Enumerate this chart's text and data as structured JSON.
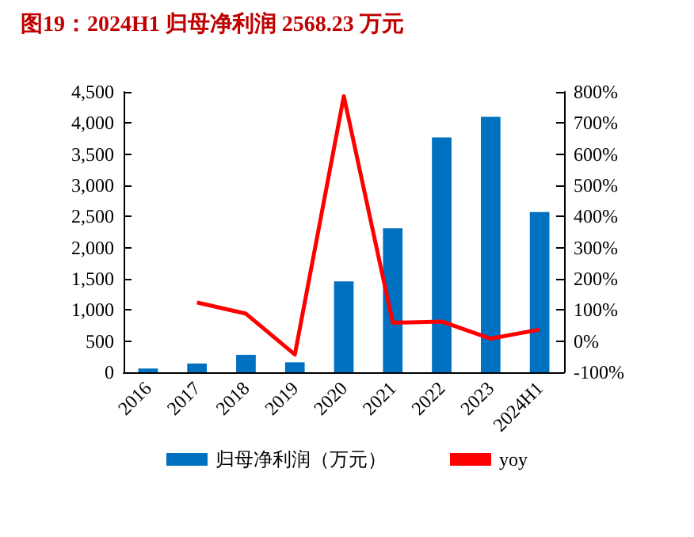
{
  "chart_data": {
    "type": "bar",
    "title": "图19：2024H1 归母净利润 2568.23 万元",
    "categories": [
      "2016",
      "2017",
      "2018",
      "2019",
      "2020",
      "2021",
      "2022",
      "2023",
      "2024H1"
    ],
    "series": [
      {
        "name": "归母净利润（万元）",
        "color": "#0070c0",
        "values": [
          60,
          140,
          280,
          160,
          1460,
          2310,
          3770,
          4100,
          2570
        ]
      },
      {
        "name": "yoy",
        "type": "line",
        "axis": "y2",
        "color": "#ff0000",
        "values": [
          null,
          124,
          88,
          -43,
          786,
          59,
          63,
          8,
          37
        ]
      }
    ],
    "ylim": [
      0,
      4500
    ],
    "yticks": [
      0,
      500,
      {
        "value": 1000,
        "label": "1,000"
      },
      {
        "value": 1500,
        "label": "1,500"
      },
      {
        "value": 2000,
        "label": "2,000"
      },
      {
        "value": 2500,
        "label": "2,500"
      },
      {
        "value": 3000,
        "label": "3,000"
      },
      {
        "value": 3500,
        "label": "3,500"
      },
      {
        "value": 4000,
        "label": "4,000"
      },
      {
        "value": 4500,
        "label": "4,500"
      }
    ],
    "y2lim": [
      -100,
      800
    ],
    "y2ticks": [
      {
        "value": -100,
        "label": "-100%"
      },
      {
        "value": 0,
        "label": "0%"
      },
      {
        "value": 100,
        "label": "100%"
      },
      {
        "value": 200,
        "label": "200%"
      },
      {
        "value": 300,
        "label": "300%"
      },
      {
        "value": 400,
        "label": "400%"
      },
      {
        "value": 500,
        "label": "500%"
      },
      {
        "value": 600,
        "label": "600%"
      },
      {
        "value": 700,
        "label": "700%"
      },
      {
        "value": 800,
        "label": "800%"
      }
    ],
    "grid": false,
    "legend": "bottom",
    "marker": "none"
  }
}
